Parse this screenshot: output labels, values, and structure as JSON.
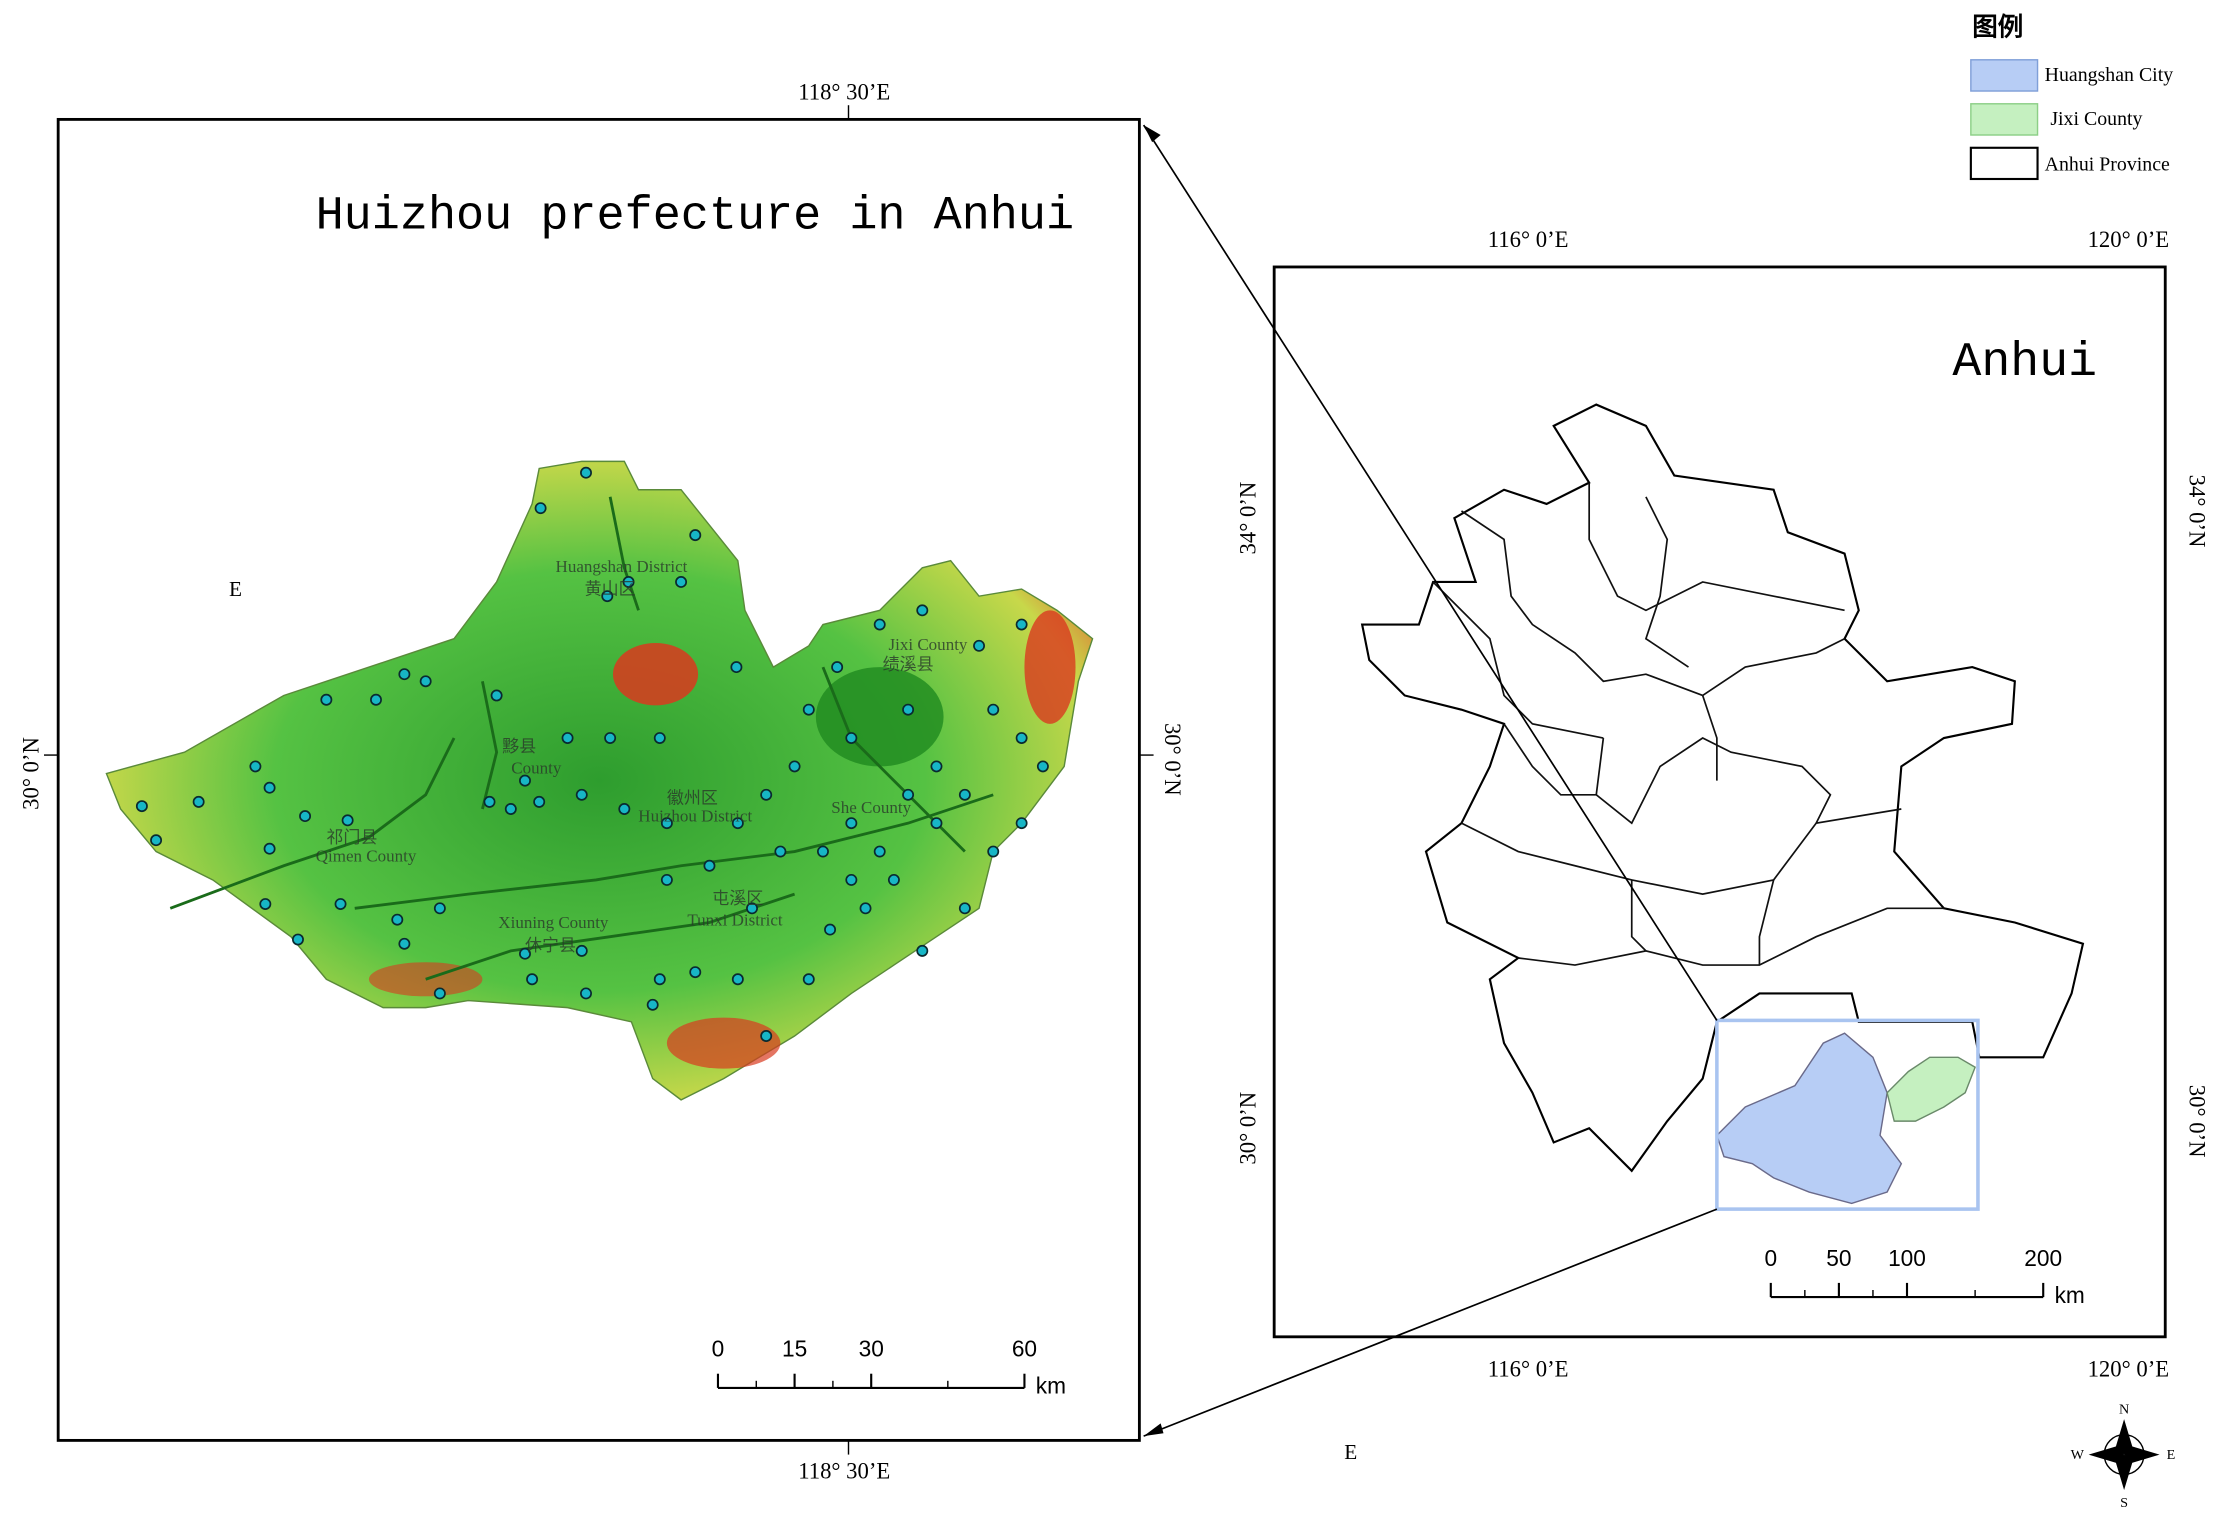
{
  "legend": {
    "title": "图例",
    "items": [
      "Huangshan City",
      "Jixi County",
      "Anhui Province"
    ]
  },
  "left_map": {
    "title": "Huizhou prefecture in Anhui",
    "top_label": "118° 30’E",
    "bottom_label": "118° 30’E",
    "left_label": "30° 0’N",
    "right_label": "30° 0’N",
    "stray_label": "E",
    "place_labels": [
      "Huangshan District",
      "黄山区",
      "Jixi County",
      "绩溪县",
      "黟县",
      "County",
      "徽州区",
      "Huizhou District",
      "She County",
      "祁门县",
      "Qimen County",
      "Xiuning County",
      "休宁县",
      "屯溪区",
      "Tunxi District"
    ],
    "scale": {
      "ticks": [
        0,
        15,
        30,
        60
      ],
      "unit": "km"
    }
  },
  "right_map": {
    "title": "Anhui",
    "top_labels": [
      "116° 0’E",
      "120° 0’E"
    ],
    "bottom_labels": [
      "116° 0’E",
      "120° 0’E"
    ],
    "left_labels": [
      "34° 0’N",
      "30° 0’N"
    ],
    "right_labels": [
      "34° 0’N",
      "30° 0’N"
    ],
    "stray_label": "E",
    "scale": {
      "ticks": [
        0,
        50,
        100,
        200
      ],
      "unit": "km"
    }
  },
  "compass": {
    "n": "N",
    "e": "E",
    "s": "S",
    "w": "W"
  }
}
